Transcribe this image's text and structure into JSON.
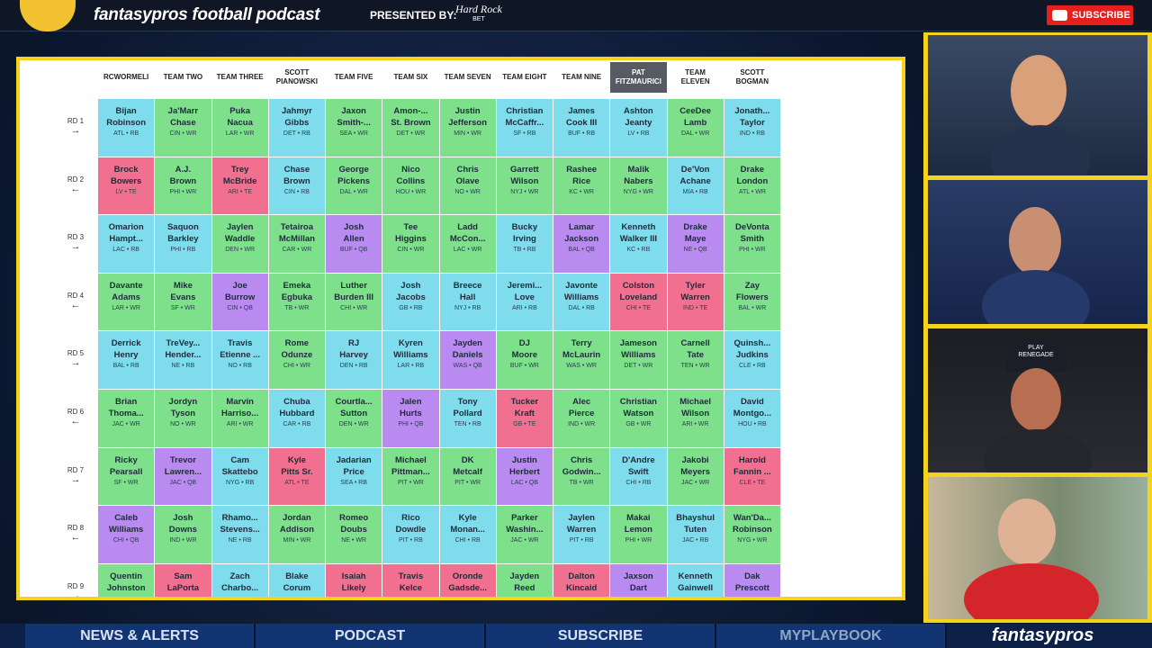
{
  "header": {
    "show_title": "fantasypros football podcast",
    "presented_by": "PRESENTED BY:",
    "sponsor": [
      "Hard Rock",
      "BET"
    ],
    "subscribe": "SUBSCRIBE"
  },
  "board": {
    "highlight": 9,
    "colors": {
      "RB": "#7fdcec",
      "WR": "#7ee08a",
      "TE": "#f2708f",
      "QB": "#b98af0"
    },
    "teams": [
      [
        "RCWORMELI"
      ],
      [
        "TEAM TWO"
      ],
      [
        "TEAM THREE"
      ],
      [
        "SCOTT",
        "PIANOWSKI"
      ],
      [
        "TEAM FIVE"
      ],
      [
        "TEAM SIX"
      ],
      [
        "TEAM SEVEN"
      ],
      [
        "TEAM EIGHT"
      ],
      [
        "TEAM NINE"
      ],
      [
        "PAT",
        "FITZMAURICI"
      ],
      [
        "TEAM",
        "ELEVEN"
      ],
      [
        "SCOTT",
        "BOGMAN"
      ]
    ],
    "rounds": [
      {
        "label": "RD 1",
        "picks": [
          {
            "name": [
              "Bijan",
              "Robinson"
            ],
            "info": "ATL • RB"
          },
          {
            "name": [
              "Ja'Marr",
              "Chase"
            ],
            "info": "CIN • WR"
          },
          {
            "name": [
              "Puka",
              "Nacua"
            ],
            "info": "LAR • WR"
          },
          {
            "name": [
              "Jahmyr",
              "Gibbs"
            ],
            "info": "DET • RB"
          },
          {
            "name": [
              "Jaxon",
              "Smith-..."
            ],
            "info": "SEA • WR"
          },
          {
            "name": [
              "Amon-...",
              "St. Brown"
            ],
            "info": "DET • WR"
          },
          {
            "name": [
              "Justin",
              "Jefferson"
            ],
            "info": "MIN • WR"
          },
          {
            "name": [
              "Christian",
              "McCaffr..."
            ],
            "info": "SF • RB"
          },
          {
            "name": [
              "James",
              "Cook III"
            ],
            "info": "BUF • RB"
          },
          {
            "name": [
              "Ashton",
              "Jeanty"
            ],
            "info": "LV • RB"
          },
          {
            "name": [
              "CeeDee",
              "Lamb"
            ],
            "info": "DAL • WR"
          },
          {
            "name": [
              "Jonath...",
              "Taylor"
            ],
            "info": "IND • RB"
          }
        ]
      },
      {
        "label": "RD 2",
        "picks": [
          {
            "name": [
              "Brock",
              "Bowers"
            ],
            "info": "LV • TE"
          },
          {
            "name": [
              "A.J.",
              "Brown"
            ],
            "info": "PHI • WR"
          },
          {
            "name": [
              "Trey",
              "McBride"
            ],
            "info": "ARI • TE"
          },
          {
            "name": [
              "Chase",
              "Brown"
            ],
            "info": "CIN • RB"
          },
          {
            "name": [
              "George",
              "Pickens"
            ],
            "info": "DAL • WR"
          },
          {
            "name": [
              "Nico",
              "Collins"
            ],
            "info": "HOU • WR"
          },
          {
            "name": [
              "Chris",
              "Olave"
            ],
            "info": "NO • WR"
          },
          {
            "name": [
              "Garrett",
              "Wilson"
            ],
            "info": "NYJ • WR"
          },
          {
            "name": [
              "Rashee",
              "Rice"
            ],
            "info": "KC • WR"
          },
          {
            "name": [
              "Malik",
              "Nabers"
            ],
            "info": "NYG • WR"
          },
          {
            "name": [
              "De'Von",
              "Achane"
            ],
            "info": "MIA • RB"
          },
          {
            "name": [
              "Drake",
              "London"
            ],
            "info": "ATL • WR"
          }
        ]
      },
      {
        "label": "RD 3",
        "picks": [
          {
            "name": [
              "Omarion",
              "Hampt..."
            ],
            "info": "LAC • RB"
          },
          {
            "name": [
              "Saquon",
              "Barkley"
            ],
            "info": "PHI • RB"
          },
          {
            "name": [
              "Jaylen",
              "Waddle"
            ],
            "info": "DEN • WR"
          },
          {
            "name": [
              "Tetairoa",
              "McMillan"
            ],
            "info": "CAR • WR"
          },
          {
            "name": [
              "Josh",
              "Allen"
            ],
            "info": "BUF • QB"
          },
          {
            "name": [
              "Tee",
              "Higgins"
            ],
            "info": "CIN • WR"
          },
          {
            "name": [
              "Ladd",
              "McCon..."
            ],
            "info": "LAC • WR"
          },
          {
            "name": [
              "Bucky",
              "Irving"
            ],
            "info": "TB • RB"
          },
          {
            "name": [
              "Lamar",
              "Jackson"
            ],
            "info": "BAL • QB"
          },
          {
            "name": [
              "Kenneth",
              "Walker III"
            ],
            "info": "KC • RB"
          },
          {
            "name": [
              "Drake",
              "Maye"
            ],
            "info": "NE • QB"
          },
          {
            "name": [
              "DeVonta",
              "Smith"
            ],
            "info": "PHI • WR"
          }
        ]
      },
      {
        "label": "RD 4",
        "picks": [
          {
            "name": [
              "Davante",
              "Adams"
            ],
            "info": "LAR • WR"
          },
          {
            "name": [
              "Mike",
              "Evans"
            ],
            "info": "SF • WR"
          },
          {
            "name": [
              "Joe",
              "Burrow"
            ],
            "info": "CIN • QB"
          },
          {
            "name": [
              "Emeka",
              "Egbuka"
            ],
            "info": "TB • WR"
          },
          {
            "name": [
              "Luther",
              "Burden III"
            ],
            "info": "CHI • WR"
          },
          {
            "name": [
              "Josh",
              "Jacobs"
            ],
            "info": "GB • RB"
          },
          {
            "name": [
              "Breece",
              "Hall"
            ],
            "info": "NYJ • RB"
          },
          {
            "name": [
              "Jeremi...",
              "Love"
            ],
            "info": "ARI • RB"
          },
          {
            "name": [
              "Javonte",
              "Williams"
            ],
            "info": "DAL • RB"
          },
          {
            "name": [
              "Colston",
              "Loveland"
            ],
            "info": "CHI • TE"
          },
          {
            "name": [
              "Tyler",
              "Warren"
            ],
            "info": "IND • TE"
          },
          {
            "name": [
              "Zay",
              "Flowers"
            ],
            "info": "BAL • WR"
          }
        ]
      },
      {
        "label": "RD 5",
        "picks": [
          {
            "name": [
              "Derrick",
              "Henry"
            ],
            "info": "BAL • RB"
          },
          {
            "name": [
              "TreVey...",
              "Hender..."
            ],
            "info": "NE • RB"
          },
          {
            "name": [
              "Travis",
              "Etienne ..."
            ],
            "info": "NO • RB"
          },
          {
            "name": [
              "Rome",
              "Odunze"
            ],
            "info": "CHI • WR"
          },
          {
            "name": [
              "RJ",
              "Harvey"
            ],
            "info": "DEN • RB"
          },
          {
            "name": [
              "Kyren",
              "Williams"
            ],
            "info": "LAR • RB"
          },
          {
            "name": [
              "Jayden",
              "Daniels"
            ],
            "info": "WAS • QB"
          },
          {
            "name": [
              "DJ",
              "Moore"
            ],
            "info": "BUF • WR"
          },
          {
            "name": [
              "Terry",
              "McLaurin"
            ],
            "info": "WAS • WR"
          },
          {
            "name": [
              "Jameson",
              "Williams"
            ],
            "info": "DET • WR"
          },
          {
            "name": [
              "Carnell",
              "Tate"
            ],
            "info": "TEN • WR"
          },
          {
            "name": [
              "Quinsh...",
              "Judkins"
            ],
            "info": "CLE • RB"
          }
        ]
      },
      {
        "label": "RD 6",
        "picks": [
          {
            "name": [
              "Brian",
              "Thoma..."
            ],
            "info": "JAC • WR"
          },
          {
            "name": [
              "Jordyn",
              "Tyson"
            ],
            "info": "NO • WR"
          },
          {
            "name": [
              "Marvin",
              "Harriso..."
            ],
            "info": "ARI • WR"
          },
          {
            "name": [
              "Chuba",
              "Hubbard"
            ],
            "info": "CAR • RB"
          },
          {
            "name": [
              "Courtla...",
              "Sutton"
            ],
            "info": "DEN • WR"
          },
          {
            "name": [
              "Jalen",
              "Hurts"
            ],
            "info": "PHI • QB"
          },
          {
            "name": [
              "Tony",
              "Pollard"
            ],
            "info": "TEN • RB"
          },
          {
            "name": [
              "Tucker",
              "Kraft"
            ],
            "info": "GB • TE"
          },
          {
            "name": [
              "Alec",
              "Pierce"
            ],
            "info": "IND • WR"
          },
          {
            "name": [
              "Christian",
              "Watson"
            ],
            "info": "GB • WR"
          },
          {
            "name": [
              "Michael",
              "Wilson"
            ],
            "info": "ARI • WR"
          },
          {
            "name": [
              "David",
              "Montgo..."
            ],
            "info": "HOU • RB"
          }
        ]
      },
      {
        "label": "RD 7",
        "picks": [
          {
            "name": [
              "Ricky",
              "Pearsall"
            ],
            "info": "SF • WR"
          },
          {
            "name": [
              "Trevor",
              "Lawren..."
            ],
            "info": "JAC • QB"
          },
          {
            "name": [
              "Cam",
              "Skattebo"
            ],
            "info": "NYG • RB"
          },
          {
            "name": [
              "Kyle",
              "Pitts Sr."
            ],
            "info": "ATL • TE"
          },
          {
            "name": [
              "Jadarian",
              "Price"
            ],
            "info": "SEA • RB"
          },
          {
            "name": [
              "Michael",
              "Pittman..."
            ],
            "info": "PIT • WR"
          },
          {
            "name": [
              "DK",
              "Metcalf"
            ],
            "info": "PIT • WR"
          },
          {
            "name": [
              "Justin",
              "Herbert"
            ],
            "info": "LAC • QB"
          },
          {
            "name": [
              "Chris",
              "Godwin..."
            ],
            "info": "TB • WR"
          },
          {
            "name": [
              "D'Andre",
              "Swift"
            ],
            "info": "CHI • RB"
          },
          {
            "name": [
              "Jakobi",
              "Meyers"
            ],
            "info": "JAC • WR"
          },
          {
            "name": [
              "Harold",
              "Fannin ..."
            ],
            "info": "CLE • TE"
          }
        ]
      },
      {
        "label": "RD 8",
        "picks": [
          {
            "name": [
              "Caleb",
              "Williams"
            ],
            "info": "CHI • QB"
          },
          {
            "name": [
              "Josh",
              "Downs"
            ],
            "info": "IND • WR"
          },
          {
            "name": [
              "Rhamo...",
              "Stevens..."
            ],
            "info": "NE • RB"
          },
          {
            "name": [
              "Jordan",
              "Addison"
            ],
            "info": "MIN • WR"
          },
          {
            "name": [
              "Romeo",
              "Doubs"
            ],
            "info": "NE • WR"
          },
          {
            "name": [
              "Rico",
              "Dowdle"
            ],
            "info": "PIT • RB"
          },
          {
            "name": [
              "Kyle",
              "Monan..."
            ],
            "info": "CHI • RB"
          },
          {
            "name": [
              "Parker",
              "Washin..."
            ],
            "info": "JAC • WR"
          },
          {
            "name": [
              "Jaylen",
              "Warren"
            ],
            "info": "PIT • RB"
          },
          {
            "name": [
              "Makai",
              "Lemon"
            ],
            "info": "PHI • WR"
          },
          {
            "name": [
              "Bhayshul",
              "Tuten"
            ],
            "info": "JAC • RB"
          },
          {
            "name": [
              "Wan'Da...",
              "Robinson"
            ],
            "info": "NYG • WR"
          }
        ]
      },
      {
        "label": "RD 9",
        "picks": [
          {
            "name": [
              "Quentin",
              "Johnston"
            ],
            "group": "WR"
          },
          {
            "name": [
              "Sam",
              "LaPorta"
            ],
            "group": "TE"
          },
          {
            "name": [
              "Zach",
              "Charbo..."
            ],
            "group": "RB"
          },
          {
            "name": [
              "Blake",
              "Corum"
            ],
            "group": "RB"
          },
          {
            "name": [
              "Isaiah",
              "Likely"
            ],
            "group": "TE"
          },
          {
            "name": [
              "Travis",
              "Kelce"
            ],
            "group": "TE"
          },
          {
            "name": [
              "Oronde",
              "Gadsde..."
            ],
            "group": "TE"
          },
          {
            "name": [
              "Jayden",
              "Reed"
            ],
            "group": "WR"
          },
          {
            "name": [
              "Dalton",
              "Kincaid"
            ],
            "group": "TE"
          },
          {
            "name": [
              "Jaxson",
              "Dart"
            ],
            "group": "QB"
          },
          {
            "name": [
              "Kenneth",
              "Gainwell"
            ],
            "group": "RB"
          },
          {
            "name": [
              "Dak",
              "Prescott"
            ],
            "group": "QB"
          }
        ]
      }
    ]
  },
  "video": {
    "hat": [
      "PLAY",
      "RENEGADE"
    ]
  },
  "nav": {
    "items": [
      "NEWS & ALERTS",
      "PODCAST",
      "SUBSCRIBE",
      "MYPLAYBOOK"
    ],
    "brand": "fantasypros"
  }
}
